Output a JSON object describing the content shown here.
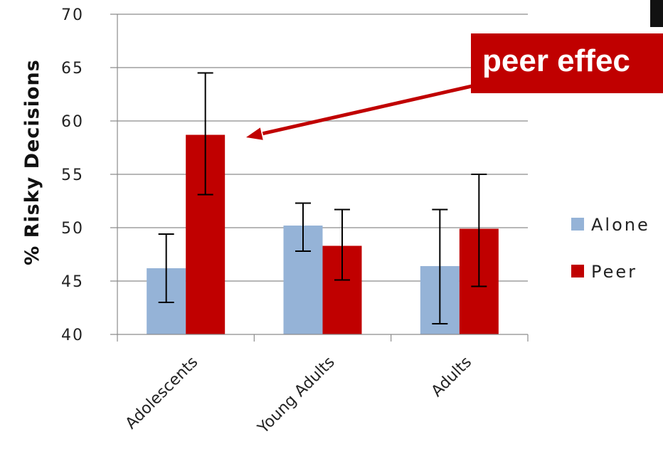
{
  "chart_data": {
    "type": "bar",
    "categories": [
      "Adolescents",
      "Young Adults",
      "Adults"
    ],
    "series": [
      {
        "name": "Alone",
        "values": [
          46.2,
          50.2,
          46.4
        ],
        "error_low": [
          43.0,
          47.8,
          41.0
        ],
        "error_high": [
          49.4,
          52.3,
          51.7
        ]
      },
      {
        "name": "Peer",
        "values": [
          58.7,
          48.3,
          49.9
        ],
        "error_low": [
          53.1,
          45.1,
          44.5
        ],
        "error_high": [
          64.5,
          51.7,
          55.0
        ]
      }
    ],
    "ylabel": "% Risky Decisions",
    "ylim": [
      40,
      70
    ],
    "yticks": [
      40,
      45,
      50,
      55,
      60,
      65,
      70
    ],
    "grid": true,
    "legend": "right",
    "colors": {
      "Alone": "#95b3d7",
      "Peer": "#c00000",
      "arrow": "#c00000"
    },
    "annotation": {
      "text": "peer effec",
      "points_to": "Adolescents Peer"
    }
  }
}
